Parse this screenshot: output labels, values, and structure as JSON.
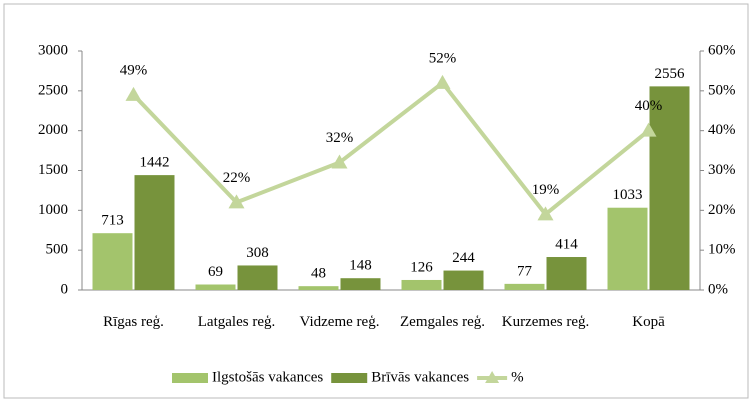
{
  "chart_data": {
    "type": "bar",
    "categories": [
      "Rīgas reģ.",
      "Latgales reģ.",
      "Vidzeme reģ.",
      "Zemgales reģ.",
      "Kurzemes reģ.",
      "Kopā"
    ],
    "series": [
      {
        "name": "Ilgstošās vakances",
        "color": "#a3c46c",
        "values": [
          713,
          69,
          48,
          126,
          77,
          1033
        ]
      },
      {
        "name": "Brīvās vakances",
        "color": "#77933c",
        "values": [
          1442,
          308,
          148,
          244,
          414,
          2556
        ]
      },
      {
        "name": "%",
        "type": "line",
        "axis": "y2",
        "color": "#c3d69b",
        "values": [
          49,
          22,
          32,
          52,
          19,
          40
        ],
        "value_labels": [
          "49%",
          "22%",
          "32%",
          "52%",
          "19%",
          "40%"
        ]
      }
    ],
    "ylim": [
      0,
      3000
    ],
    "yticks": [
      0,
      500,
      1000,
      1500,
      2000,
      2500,
      3000
    ],
    "y2lim": [
      0,
      60
    ],
    "y2ticks": [
      {
        "value": 0,
        "label": "0%"
      },
      {
        "value": 10,
        "label": "10%"
      },
      {
        "value": 20,
        "label": "20%"
      },
      {
        "value": 30,
        "label": "30%"
      },
      {
        "value": 40,
        "label": "40%"
      },
      {
        "value": 50,
        "label": "50%"
      },
      {
        "value": 60,
        "label": "60%"
      }
    ],
    "grid": false,
    "legend": "bottom"
  }
}
